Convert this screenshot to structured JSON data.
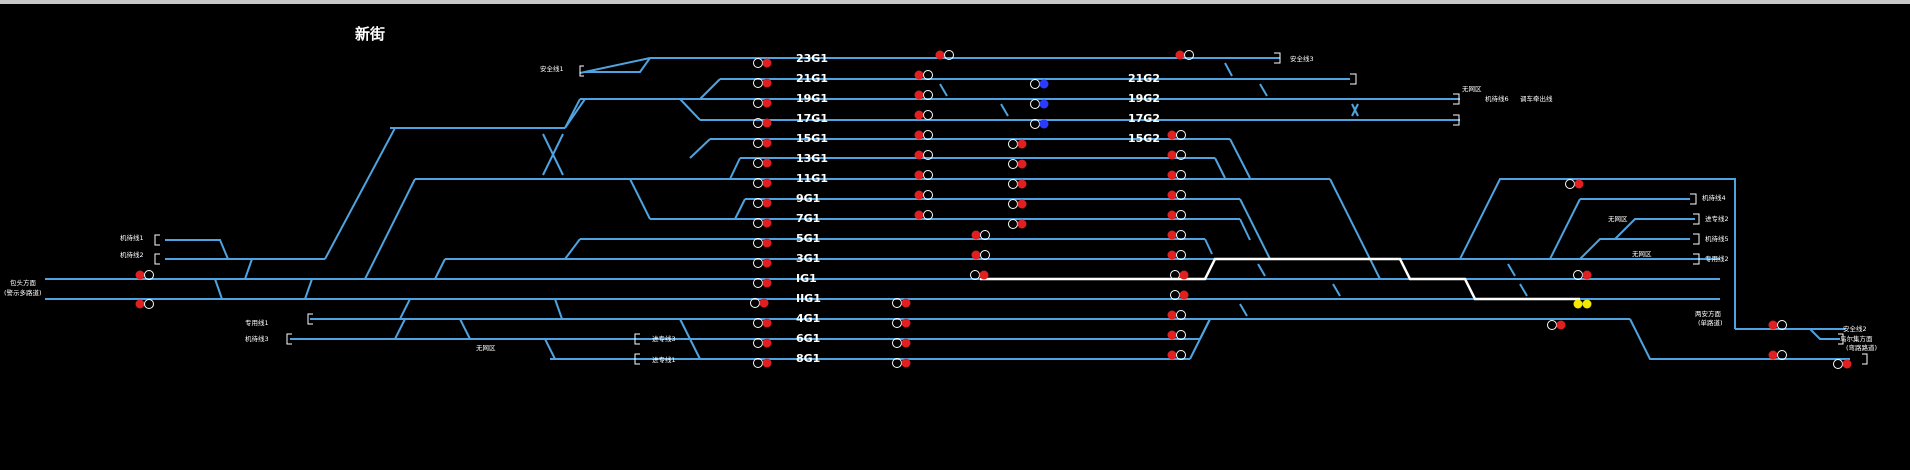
{
  "station_name": "新街",
  "track_labels_left": [
    "23G1",
    "21G1",
    "19G1",
    "17G1",
    "15G1",
    "13G1",
    "11G1",
    "9G1",
    "7G1",
    "5G1",
    "3G1",
    "IG1",
    "IIG1",
    "4G1",
    "6G1",
    "8G1"
  ],
  "track_labels_right": [
    "21G2",
    "19G2",
    "17G2",
    "15G2"
  ],
  "side_labels": {
    "anquanxian1": "安全线1",
    "anquanxian3": "安全线3",
    "anquanxian2": "安全线2",
    "wuwangqu_1": "无网区",
    "wuwangqu_2": "无网区",
    "wuwangqu_3": "无网区",
    "wuwangqu_4": "无网区",
    "jixiexian6": "机待线6",
    "diaocheduanxian": "调车牵出线",
    "jixiexian1": "机待线1",
    "jixiexian2": "机待线2",
    "jixiexian3": "机待线3",
    "jixiexian4": "机待线4",
    "jixiexian5": "机待线5",
    "jinzhuanxian1": "进专线1",
    "jinzhuanxian2": "进专线2",
    "jinzhuanxian3": "进专线3",
    "zhuanyongxian1": "专用线1",
    "zhuanyongxian2": "专用线2",
    "baotou_dir_1": "包头方面",
    "baotou_dir_2": "(警示多路道)",
    "liangan_dir_1": "两安方面",
    "liangan_dir_2": "(单路道)",
    "wulan_dir_1": "乌尔集方面",
    "wulan_dir_2": "(弯路路道)"
  },
  "colors": {
    "track": "#4fa3e0",
    "route": "#ffffff",
    "signal_red": "#e02020",
    "signal_blue": "#2a3bff",
    "signal_yellow": "#f2e800",
    "background": "#000000"
  }
}
